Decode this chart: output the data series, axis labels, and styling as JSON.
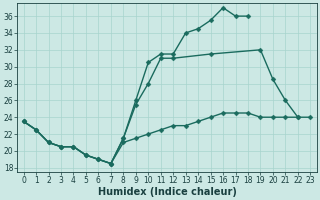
{
  "xlabel": "Humidex (Indice chaleur)",
  "bg_color": "#cce8e4",
  "line_color": "#1a6b5e",
  "xlim": [
    -0.5,
    23.5
  ],
  "ylim": [
    17.5,
    37.5
  ],
  "yticks": [
    18,
    20,
    22,
    24,
    26,
    28,
    30,
    32,
    34,
    36
  ],
  "xticks": [
    0,
    1,
    2,
    3,
    4,
    5,
    6,
    7,
    8,
    9,
    10,
    11,
    12,
    13,
    14,
    15,
    16,
    17,
    18,
    19,
    20,
    21,
    22,
    23
  ],
  "grid_color": "#a8d4ce",
  "font_color": "#1a4040",
  "xlabel_fontsize": 7,
  "tick_fontsize": 5.5,
  "line1_x": [
    0,
    1,
    2,
    3,
    4,
    5,
    6,
    7,
    8,
    9,
    10,
    11,
    12,
    13,
    14,
    15,
    16,
    17,
    18
  ],
  "line1_y": [
    23.5,
    22.5,
    21.0,
    20.5,
    20.5,
    19.5,
    19.0,
    18.5,
    21.5,
    26.0,
    30.5,
    31.5,
    31.5,
    34.0,
    34.5,
    35.5,
    37.0,
    36.0,
    36.0
  ],
  "line2_x": [
    0,
    1,
    2,
    3,
    4,
    5,
    6,
    7,
    8,
    9,
    10,
    11,
    12,
    15,
    19,
    20,
    21,
    22
  ],
  "line2_y": [
    23.5,
    22.5,
    21.0,
    20.5,
    20.5,
    19.5,
    19.0,
    18.5,
    21.5,
    25.5,
    28.0,
    31.0,
    31.0,
    31.5,
    32.0,
    28.5,
    26.0,
    24.0
  ],
  "line3_x": [
    0,
    1,
    2,
    3,
    4,
    5,
    6,
    7,
    8,
    9,
    10,
    11,
    12,
    13,
    14,
    15,
    16,
    17,
    18,
    19,
    20,
    21,
    22,
    23
  ],
  "line3_y": [
    23.5,
    22.5,
    21.0,
    20.5,
    20.5,
    19.5,
    19.0,
    18.5,
    21.0,
    21.5,
    22.0,
    22.5,
    23.0,
    23.0,
    23.5,
    24.0,
    24.5,
    24.5,
    24.5,
    24.0,
    24.0,
    24.0,
    24.0,
    24.0
  ]
}
